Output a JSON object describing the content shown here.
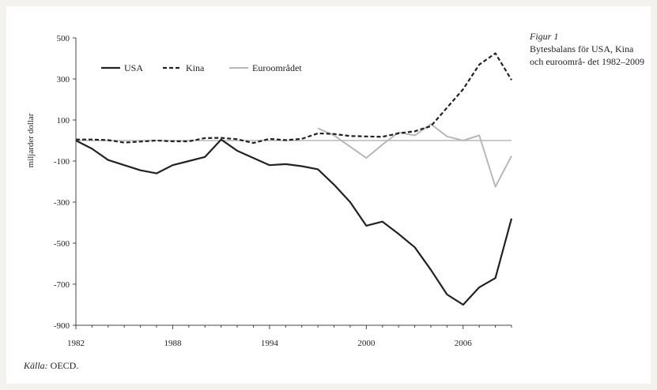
{
  "caption": {
    "figure_label": "Figur 1",
    "title": "Bytesbalans för USA, Kina och euroområ- det 1982–2009"
  },
  "source": {
    "label": "Källa:",
    "text": "OECD."
  },
  "colors": {
    "usa": "#222222",
    "kina": "#222222",
    "euro": "#b8b8b8",
    "zero_line": "#b8b8b8",
    "axis": "#444444"
  },
  "chart_data": {
    "type": "line",
    "title": "Bytesbalans för USA, Kina och euroområdet 1982–2009",
    "xlabel": "",
    "ylabel": "miljarder dollar",
    "xlim": [
      1982,
      2009
    ],
    "ylim": [
      -900,
      500
    ],
    "x_ticks": [
      1982,
      1988,
      1994,
      2000,
      2006
    ],
    "y_ticks": [
      500,
      300,
      100,
      -100,
      -300,
      -500,
      -700,
      -900
    ],
    "legend_position": "top-left",
    "grid": false,
    "series": [
      {
        "name": "USA",
        "style": "solid",
        "x": [
          1982,
          1983,
          1984,
          1985,
          1986,
          1987,
          1988,
          1989,
          1990,
          1991,
          1992,
          1993,
          1994,
          1995,
          1996,
          1997,
          1998,
          1999,
          2000,
          2001,
          2002,
          2003,
          2004,
          2005,
          2006,
          2007,
          2008,
          2009
        ],
        "y": [
          0,
          -40,
          -95,
          -120,
          -145,
          -160,
          -120,
          -100,
          -80,
          5,
          -50,
          -85,
          -120,
          -115,
          -125,
          -140,
          -215,
          -300,
          -415,
          -395,
          -455,
          -520,
          -630,
          -750,
          -800,
          -715,
          -670,
          -380
        ]
      },
      {
        "name": "Kina",
        "style": "dashed",
        "x": [
          1982,
          1983,
          1984,
          1985,
          1986,
          1987,
          1988,
          1989,
          1990,
          1991,
          1992,
          1993,
          1994,
          1995,
          1996,
          1997,
          1998,
          1999,
          2000,
          2001,
          2002,
          2003,
          2004,
          2005,
          2006,
          2007,
          2008,
          2009
        ],
        "y": [
          5,
          5,
          2,
          -10,
          -5,
          0,
          -4,
          -4,
          12,
          13,
          6,
          -12,
          8,
          2,
          8,
          35,
          32,
          22,
          20,
          18,
          35,
          45,
          70,
          160,
          250,
          370,
          425,
          295
        ]
      },
      {
        "name": "Euroområdet",
        "style": "solid-light",
        "x": [
          1997,
          1998,
          1999,
          2000,
          2001,
          2002,
          2003,
          2004,
          2005,
          2006,
          2007,
          2008,
          2009
        ],
        "y": [
          60,
          25,
          -30,
          -85,
          -20,
          40,
          25,
          80,
          20,
          0,
          25,
          -225,
          -75
        ]
      }
    ]
  }
}
